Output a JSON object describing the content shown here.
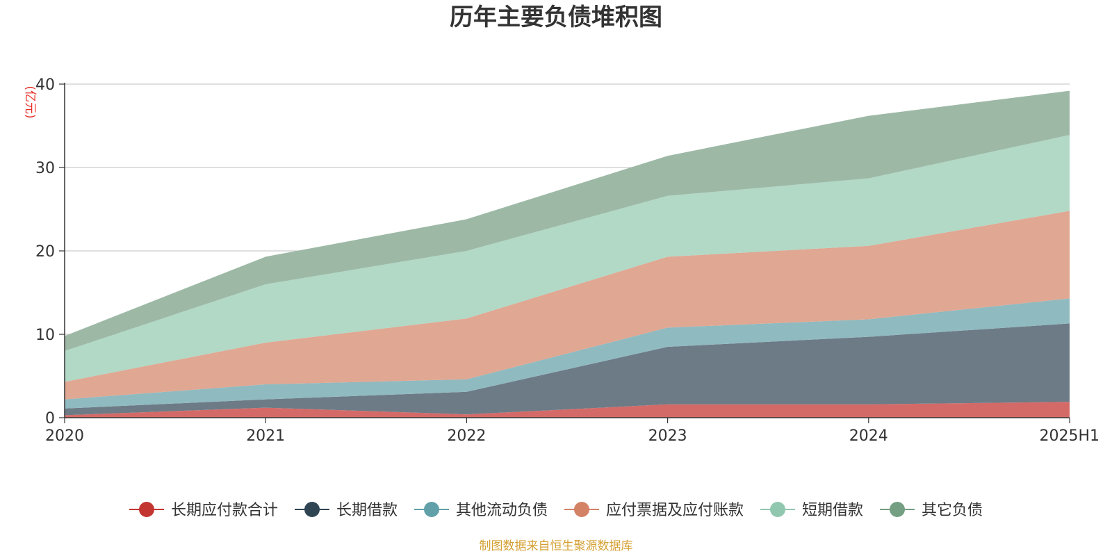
{
  "chart_data": {
    "type": "area",
    "stacked": true,
    "title": "历年主要负债堆积图",
    "unit_label": "(亿元)",
    "x": [
      "2020",
      "2021",
      "2022",
      "2023",
      "2024",
      "2025H1"
    ],
    "ylim": [
      0,
      40
    ],
    "yticks": [
      0,
      10,
      20,
      30,
      40
    ],
    "grid": true,
    "legend_position": "bottom",
    "series": [
      {
        "name": "长期应付款合计",
        "color": "#c23531",
        "fill": "#d46a68",
        "values": [
          0.3,
          1.2,
          0.4,
          1.6,
          1.6,
          1.9
        ]
      },
      {
        "name": "长期借款",
        "color": "#2f4554",
        "fill": "#6d7b86",
        "values": [
          0.8,
          1.0,
          2.7,
          6.9,
          8.1,
          9.4
        ]
      },
      {
        "name": "其他流动负债",
        "color": "#61a0a8",
        "fill": "#8fbac0",
        "values": [
          1.1,
          1.8,
          1.5,
          2.3,
          2.1,
          3.0
        ]
      },
      {
        "name": "应付票据及应付账款",
        "color": "#d48265",
        "fill": "#e0a792",
        "values": [
          2.1,
          5.0,
          7.3,
          8.5,
          8.8,
          10.5
        ]
      },
      {
        "name": "短期借款",
        "color": "#91c7ae",
        "fill": "#b2d8c6",
        "values": [
          3.7,
          7.0,
          8.1,
          7.3,
          8.1,
          9.1
        ]
      },
      {
        "name": "其它负债",
        "color": "#749f83",
        "fill": "#9db9a6",
        "values": [
          1.8,
          3.3,
          3.8,
          4.8,
          7.5,
          5.3
        ]
      }
    ]
  },
  "footer": {
    "source": "制图数据来自恒生聚源数据库"
  }
}
